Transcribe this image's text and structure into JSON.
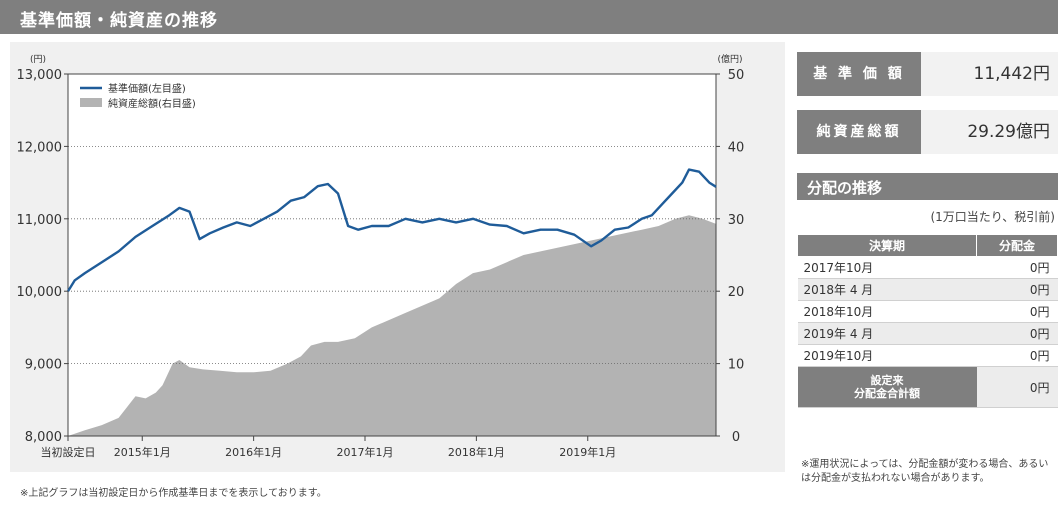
{
  "header": {
    "title": "基準価額・純資産の推移"
  },
  "chart_data": {
    "type": "line",
    "x_tick_labels": [
      "当初設定日",
      "2015年1月",
      "2016年1月",
      "2017年1月",
      "2018年1月",
      "2019年1月"
    ],
    "left_axis": {
      "unit": "(円)",
      "ylim": [
        8000,
        13000
      ],
      "ticks": [
        "8,000",
        "9,000",
        "10,000",
        "11,000",
        "12,000",
        "13,000"
      ]
    },
    "right_axis": {
      "unit": "(億円)",
      "ylim": [
        0,
        50
      ],
      "ticks": [
        "0",
        "10",
        "20",
        "30",
        "40",
        "50"
      ]
    },
    "legend": {
      "placement": "top-left",
      "nav_label": "基準価額(左目盛)",
      "assets_label": "純資産総額(右目盛)"
    },
    "grid": "dotted-horizontal",
    "colors": {
      "nav": "#1f5c99",
      "assets": "#b3b3b3"
    },
    "series": [
      {
        "key": "nav",
        "axis": "left",
        "points": [
          [
            0,
            10000
          ],
          [
            0.02,
            10150
          ],
          [
            0.05,
            10250
          ],
          [
            0.1,
            10400
          ],
          [
            0.15,
            10550
          ],
          [
            0.2,
            10750
          ],
          [
            0.25,
            10900
          ],
          [
            0.3,
            11050
          ],
          [
            0.33,
            11150
          ],
          [
            0.36,
            11100
          ],
          [
            0.39,
            10720
          ],
          [
            0.42,
            10800
          ],
          [
            0.46,
            10880
          ],
          [
            0.5,
            10950
          ],
          [
            0.54,
            10900
          ],
          [
            0.58,
            11000
          ],
          [
            0.62,
            11100
          ],
          [
            0.66,
            11250
          ],
          [
            0.7,
            11300
          ],
          [
            0.74,
            11450
          ],
          [
            0.77,
            11480
          ],
          [
            0.8,
            11350
          ],
          [
            0.83,
            10900
          ],
          [
            0.86,
            10850
          ],
          [
            0.9,
            10900
          ],
          [
            0.95,
            10900
          ],
          [
            1.0,
            11000
          ],
          [
            1.05,
            10950
          ],
          [
            1.1,
            11000
          ],
          [
            1.15,
            10950
          ],
          [
            1.2,
            11000
          ],
          [
            1.25,
            10920
          ],
          [
            1.3,
            10900
          ],
          [
            1.35,
            10800
          ],
          [
            1.4,
            10850
          ],
          [
            1.45,
            10850
          ],
          [
            1.5,
            10780
          ],
          [
            1.55,
            10620
          ],
          [
            1.58,
            10700
          ],
          [
            1.62,
            10850
          ],
          [
            1.66,
            10880
          ],
          [
            1.7,
            11000
          ],
          [
            1.73,
            11050
          ],
          [
            1.76,
            11200
          ],
          [
            1.79,
            11350
          ],
          [
            1.82,
            11500
          ],
          [
            1.84,
            11680
          ],
          [
            1.87,
            11650
          ],
          [
            1.9,
            11500
          ],
          [
            1.92,
            11442
          ]
        ]
      },
      {
        "key": "assets",
        "axis": "right",
        "points": [
          [
            0,
            0
          ],
          [
            0.05,
            0.8
          ],
          [
            0.1,
            1.5
          ],
          [
            0.15,
            2.5
          ],
          [
            0.2,
            5.5
          ],
          [
            0.23,
            5.2
          ],
          [
            0.26,
            6.0
          ],
          [
            0.28,
            7.0
          ],
          [
            0.31,
            10.0
          ],
          [
            0.33,
            10.5
          ],
          [
            0.36,
            9.5
          ],
          [
            0.4,
            9.2
          ],
          [
            0.45,
            9.0
          ],
          [
            0.5,
            8.8
          ],
          [
            0.55,
            8.8
          ],
          [
            0.6,
            9.0
          ],
          [
            0.65,
            10.0
          ],
          [
            0.69,
            11.0
          ],
          [
            0.72,
            12.5
          ],
          [
            0.76,
            13.0
          ],
          [
            0.8,
            13.0
          ],
          [
            0.85,
            13.5
          ],
          [
            0.9,
            15.0
          ],
          [
            1.0,
            17.0
          ],
          [
            1.1,
            19.0
          ],
          [
            1.15,
            21.0
          ],
          [
            1.2,
            22.5
          ],
          [
            1.25,
            23.0
          ],
          [
            1.3,
            24.0
          ],
          [
            1.35,
            25.0
          ],
          [
            1.4,
            25.5
          ],
          [
            1.45,
            26.0
          ],
          [
            1.5,
            26.5
          ],
          [
            1.55,
            27.0
          ],
          [
            1.6,
            27.5
          ],
          [
            1.65,
            28.0
          ],
          [
            1.7,
            28.5
          ],
          [
            1.75,
            29.0
          ],
          [
            1.8,
            30.0
          ],
          [
            1.84,
            30.5
          ],
          [
            1.88,
            30.0
          ],
          [
            1.92,
            29.29
          ]
        ]
      }
    ]
  },
  "note": "※上記グラフは当初設定日から作成基準日までを表示しております。",
  "summary": {
    "nav_label": "基 準 価 額",
    "nav_value": "11,442円",
    "assets_label": "純資産総額",
    "assets_value": "29.29億円"
  },
  "distribution": {
    "title": "分配の推移",
    "subtitle": "(1万口当たり、税引前)",
    "col_period": "決算期",
    "col_amount": "分配金",
    "rows": [
      {
        "period": "2017年10月",
        "amount": "0円"
      },
      {
        "period": "2018年 4 月",
        "amount": "0円"
      },
      {
        "period": "2018年10月",
        "amount": "0円"
      },
      {
        "period": "2019年 4 月",
        "amount": "0円"
      },
      {
        "period": "2019年10月",
        "amount": "0円"
      }
    ],
    "total_label_1": "設定来",
    "total_label_2": "分配金合計額",
    "total_value": "0円",
    "footnote": "※運用状況によっては、分配金額が変わる場合、あるいは分配金が支払われない場合があります。"
  }
}
